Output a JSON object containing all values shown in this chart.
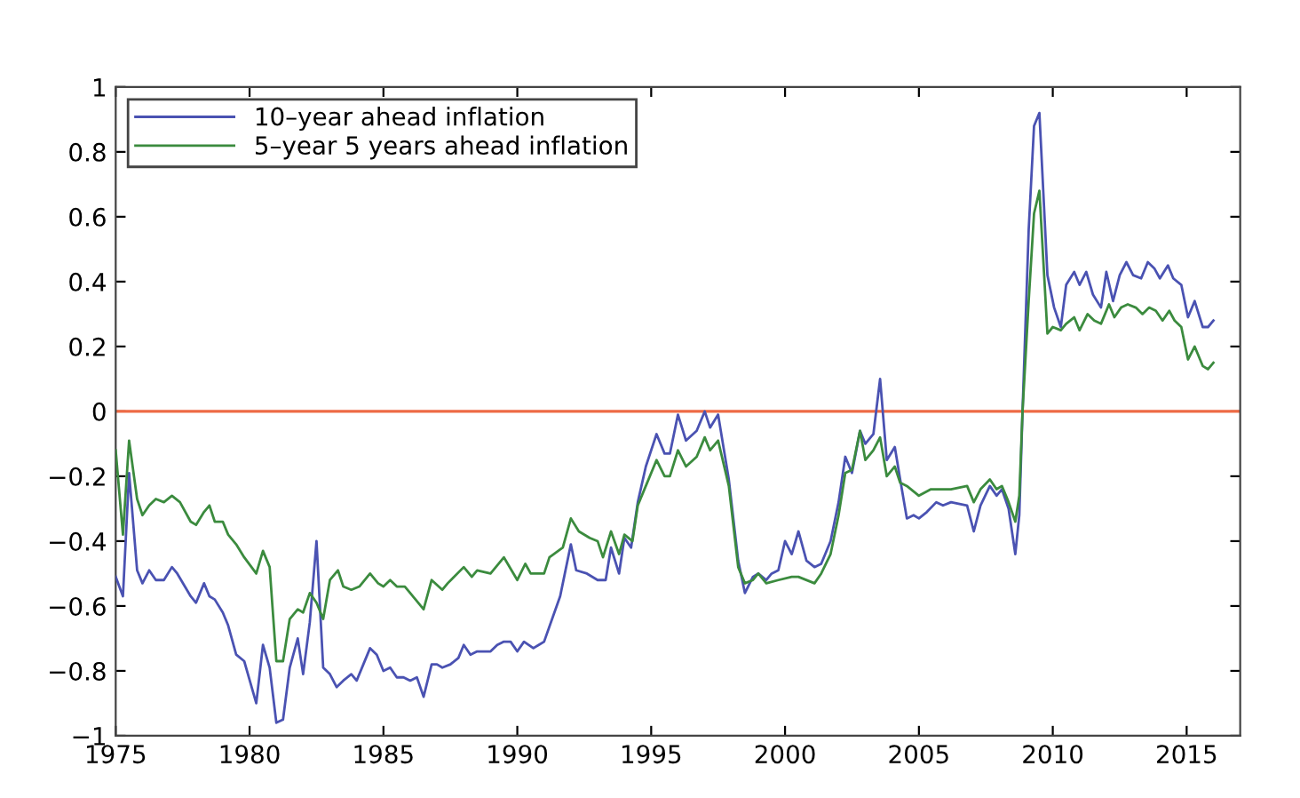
{
  "chart_data": {
    "type": "line",
    "xlim": [
      1975,
      2017
    ],
    "ylim": [
      -1,
      1
    ],
    "xticks": [
      1975,
      1980,
      1985,
      1990,
      1995,
      2000,
      2005,
      2010,
      2015
    ],
    "yticks": [
      -1,
      -0.8,
      -0.6,
      -0.4,
      -0.2,
      0,
      0.2,
      0.4,
      0.6,
      0.8,
      1
    ],
    "legend": "top left",
    "grid": false,
    "marker": "none",
    "line_style": "solid",
    "ref_lines": [
      {
        "axis": "y",
        "value": 0,
        "color": "#ee6a45"
      }
    ],
    "series": [
      {
        "name": "10–year ahead inflation",
        "color": "#4a52b2",
        "x": [
          1975,
          1975.27,
          1975.5,
          1975.8,
          1976.0,
          1976.25,
          1976.5,
          1976.8,
          1977.1,
          1977.3,
          1977.8,
          1978.0,
          1978.3,
          1978.5,
          1978.7,
          1979.0,
          1979.2,
          1979.5,
          1979.8,
          1980.25,
          1980.5,
          1980.75,
          1981.0,
          1981.25,
          1981.5,
          1981.8,
          1982.0,
          1982.25,
          1982.5,
          1982.75,
          1983.0,
          1983.25,
          1983.5,
          1983.8,
          1984.0,
          1984.25,
          1984.5,
          1984.75,
          1985.0,
          1985.25,
          1985.5,
          1985.75,
          1986.0,
          1986.25,
          1986.5,
          1986.8,
          1987.0,
          1987.2,
          1987.5,
          1987.8,
          1988.0,
          1988.25,
          1988.5,
          1988.75,
          1989.0,
          1989.25,
          1989.5,
          1989.75,
          1990.0,
          1990.25,
          1990.6,
          1990.8,
          1991.0,
          1991.3,
          1991.6,
          1991.7,
          1992.0,
          1992.2,
          1992.6,
          1993.0,
          1993.3,
          1993.5,
          1993.8,
          1994.0,
          1994.25,
          1994.5,
          1994.8,
          1995.2,
          1995.5,
          1995.7,
          1996.0,
          1996.3,
          1996.7,
          1997.0,
          1997.2,
          1997.5,
          1997.9,
          1998.25,
          1998.5,
          1998.8,
          1999.0,
          1999.3,
          1999.5,
          1999.75,
          2000.0,
          2000.25,
          2000.5,
          2000.8,
          2001.1,
          2001.35,
          2001.7,
          2002.0,
          2002.25,
          2002.5,
          2002.8,
          2003.0,
          2003.3,
          2003.55,
          2003.8,
          2004.1,
          2004.3,
          2004.55,
          2004.8,
          2005.0,
          2005.3,
          2005.65,
          2005.9,
          2006.2,
          2006.8,
          2007.05,
          2007.3,
          2007.65,
          2007.9,
          2008.1,
          2008.35,
          2008.6,
          2008.75,
          2008.87,
          2009.1,
          2009.3,
          2009.5,
          2009.8,
          2010.05,
          2010.3,
          2010.5,
          2010.8,
          2011.0,
          2011.25,
          2011.5,
          2011.8,
          2012.0,
          2012.25,
          2012.5,
          2012.75,
          2013.0,
          2013.3,
          2013.55,
          2013.8,
          2014.0,
          2014.3,
          2014.5,
          2014.8,
          2015.05,
          2015.3,
          2015.6,
          2015.8,
          2016.0
        ],
        "values": [
          -0.51,
          -0.57,
          -0.19,
          -0.49,
          -0.53,
          -0.49,
          -0.52,
          -0.52,
          -0.48,
          -0.5,
          -0.57,
          -0.59,
          -0.53,
          -0.57,
          -0.58,
          -0.62,
          -0.66,
          -0.75,
          -0.77,
          -0.9,
          -0.72,
          -0.79,
          -0.96,
          -0.95,
          -0.79,
          -0.7,
          -0.81,
          -0.65,
          -0.4,
          -0.79,
          -0.81,
          -0.85,
          -0.83,
          -0.81,
          -0.83,
          -0.78,
          -0.73,
          -0.75,
          -0.8,
          -0.79,
          -0.82,
          -0.82,
          -0.83,
          -0.82,
          -0.88,
          -0.78,
          -0.78,
          -0.79,
          -0.78,
          -0.76,
          -0.72,
          -0.75,
          -0.74,
          -0.74,
          -0.74,
          -0.72,
          -0.71,
          -0.71,
          -0.74,
          -0.71,
          -0.73,
          -0.72,
          -0.71,
          -0.64,
          -0.57,
          -0.53,
          -0.41,
          -0.49,
          -0.5,
          -0.52,
          -0.52,
          -0.42,
          -0.5,
          -0.39,
          -0.42,
          -0.28,
          -0.17,
          -0.07,
          -0.13,
          -0.13,
          -0.01,
          -0.09,
          -0.06,
          0.0,
          -0.05,
          -0.01,
          -0.21,
          -0.46,
          -0.56,
          -0.51,
          -0.5,
          -0.52,
          -0.5,
          -0.49,
          -0.4,
          -0.44,
          -0.37,
          -0.46,
          -0.48,
          -0.47,
          -0.4,
          -0.28,
          -0.14,
          -0.19,
          -0.06,
          -0.1,
          -0.07,
          0.1,
          -0.15,
          -0.11,
          -0.21,
          -0.33,
          -0.32,
          -0.33,
          -0.31,
          -0.28,
          -0.29,
          -0.28,
          -0.29,
          -0.37,
          -0.29,
          -0.23,
          -0.26,
          -0.24,
          -0.3,
          -0.44,
          -0.32,
          0.0,
          0.56,
          0.88,
          0.92,
          0.42,
          0.32,
          0.26,
          0.39,
          0.43,
          0.39,
          0.43,
          0.36,
          0.32,
          0.43,
          0.34,
          0.42,
          0.46,
          0.42,
          0.41,
          0.46,
          0.44,
          0.41,
          0.45,
          0.41,
          0.39,
          0.29,
          0.34,
          0.26,
          0.26,
          0.28
        ]
      },
      {
        "name": "5–year 5 years ahead inflation",
        "color": "#3b8b3e",
        "x": [
          1975,
          1975.27,
          1975.5,
          1975.8,
          1976.0,
          1976.25,
          1976.5,
          1976.8,
          1977.1,
          1977.4,
          1977.8,
          1978.0,
          1978.3,
          1978.5,
          1978.7,
          1979.0,
          1979.2,
          1979.5,
          1979.8,
          1980.25,
          1980.5,
          1980.75,
          1981.0,
          1981.25,
          1981.5,
          1981.8,
          1982.0,
          1982.25,
          1982.5,
          1982.75,
          1983.0,
          1983.3,
          1983.5,
          1983.8,
          1984.1,
          1984.5,
          1984.8,
          1985.0,
          1985.25,
          1985.5,
          1985.8,
          1986.0,
          1986.5,
          1986.8,
          1987.2,
          1987.4,
          1988.0,
          1988.3,
          1988.5,
          1989.0,
          1989.5,
          1990.0,
          1990.3,
          1990.5,
          1991.0,
          1991.2,
          1991.7,
          1992.0,
          1992.3,
          1992.7,
          1993.0,
          1993.2,
          1993.5,
          1993.8,
          1994.0,
          1994.3,
          1994.5,
          1994.8,
          1995.2,
          1995.5,
          1995.7,
          1996.0,
          1996.3,
          1996.7,
          1997.0,
          1997.2,
          1997.5,
          1997.9,
          1998.25,
          1998.5,
          1998.8,
          1999.0,
          1999.3,
          1999.75,
          2000.25,
          2000.5,
          2001.1,
          2001.35,
          2001.7,
          2002.0,
          2002.25,
          2002.5,
          2002.8,
          2003.0,
          2003.3,
          2003.55,
          2003.8,
          2004.1,
          2004.3,
          2004.55,
          2005.0,
          2005.45,
          2006.2,
          2006.8,
          2007.05,
          2007.3,
          2007.65,
          2007.9,
          2008.1,
          2008.35,
          2008.6,
          2008.75,
          2008.87,
          2009.1,
          2009.3,
          2009.5,
          2009.8,
          2010.0,
          2010.3,
          2010.5,
          2010.8,
          2011.0,
          2011.3,
          2011.55,
          2011.8,
          2012.1,
          2012.3,
          2012.55,
          2012.8,
          2013.1,
          2013.35,
          2013.6,
          2013.85,
          2014.1,
          2014.35,
          2014.55,
          2014.8,
          2015.05,
          2015.3,
          2015.6,
          2015.8,
          2016.0
        ],
        "values": [
          -0.12,
          -0.38,
          -0.09,
          -0.27,
          -0.32,
          -0.29,
          -0.27,
          -0.28,
          -0.26,
          -0.28,
          -0.34,
          -0.35,
          -0.31,
          -0.29,
          -0.34,
          -0.34,
          -0.38,
          -0.41,
          -0.45,
          -0.5,
          -0.43,
          -0.48,
          -0.77,
          -0.77,
          -0.64,
          -0.61,
          -0.62,
          -0.56,
          -0.59,
          -0.64,
          -0.52,
          -0.49,
          -0.54,
          -0.55,
          -0.54,
          -0.5,
          -0.53,
          -0.54,
          -0.52,
          -0.54,
          -0.54,
          -0.56,
          -0.61,
          -0.52,
          -0.55,
          -0.53,
          -0.48,
          -0.51,
          -0.49,
          -0.5,
          -0.45,
          -0.52,
          -0.47,
          -0.5,
          -0.5,
          -0.45,
          -0.42,
          -0.33,
          -0.37,
          -0.39,
          -0.4,
          -0.45,
          -0.37,
          -0.44,
          -0.38,
          -0.4,
          -0.29,
          -0.23,
          -0.15,
          -0.2,
          -0.2,
          -0.12,
          -0.17,
          -0.14,
          -0.08,
          -0.12,
          -0.09,
          -0.23,
          -0.48,
          -0.53,
          -0.52,
          -0.5,
          -0.53,
          -0.52,
          -0.51,
          -0.51,
          -0.53,
          -0.5,
          -0.44,
          -0.32,
          -0.19,
          -0.18,
          -0.06,
          -0.15,
          -0.12,
          -0.08,
          -0.2,
          -0.17,
          -0.22,
          -0.23,
          -0.26,
          -0.24,
          -0.24,
          -0.23,
          -0.28,
          -0.24,
          -0.21,
          -0.24,
          -0.23,
          -0.28,
          -0.34,
          -0.26,
          0.0,
          0.34,
          0.61,
          0.68,
          0.24,
          0.26,
          0.25,
          0.27,
          0.29,
          0.25,
          0.3,
          0.28,
          0.27,
          0.33,
          0.29,
          0.32,
          0.33,
          0.32,
          0.3,
          0.32,
          0.31,
          0.28,
          0.31,
          0.28,
          0.26,
          0.16,
          0.2,
          0.14,
          0.13,
          0.15
        ]
      }
    ]
  }
}
